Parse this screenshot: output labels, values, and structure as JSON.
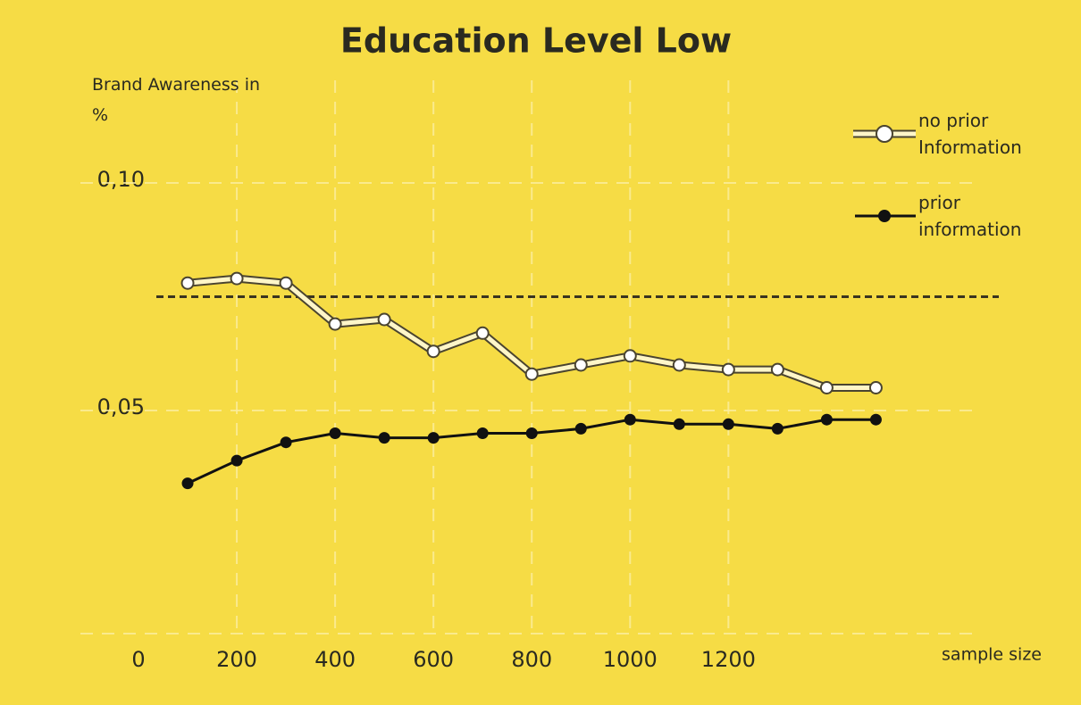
{
  "chart_data": {
    "type": "line",
    "title": "Education Level Low",
    "y_label": "Brand Awareness in %",
    "x_label": "sample size",
    "x": [
      100,
      200,
      300,
      400,
      500,
      600,
      700,
      800,
      900,
      1000,
      1100,
      1200,
      1300,
      1400,
      1500
    ],
    "series": [
      {
        "name": "no prior Information",
        "color": "#fff6c8",
        "marker": "open",
        "values": [
          0.078,
          0.079,
          0.078,
          0.069,
          0.07,
          0.063,
          0.067,
          0.058,
          0.06,
          0.062,
          0.06,
          0.059,
          0.059,
          0.055,
          0.055
        ]
      },
      {
        "name": "prior information",
        "color": "#111111",
        "marker": "filled",
        "values": [
          0.034,
          0.039,
          0.043,
          0.045,
          0.044,
          0.044,
          0.045,
          0.045,
          0.046,
          0.048,
          0.047,
          0.047,
          0.046,
          0.048,
          0.048
        ]
      }
    ],
    "reference_line": 0.075,
    "xlim": [
      0,
      1750
    ],
    "xticks": [
      0,
      200,
      400,
      600,
      800,
      1000,
      1200
    ],
    "ylim": [
      0,
      0.11
    ],
    "yticks": [
      {
        "value": 0.05,
        "label": "0,05"
      },
      {
        "value": 0.1,
        "label": "0,10"
      }
    ],
    "grid": true,
    "legend": "top-right"
  }
}
